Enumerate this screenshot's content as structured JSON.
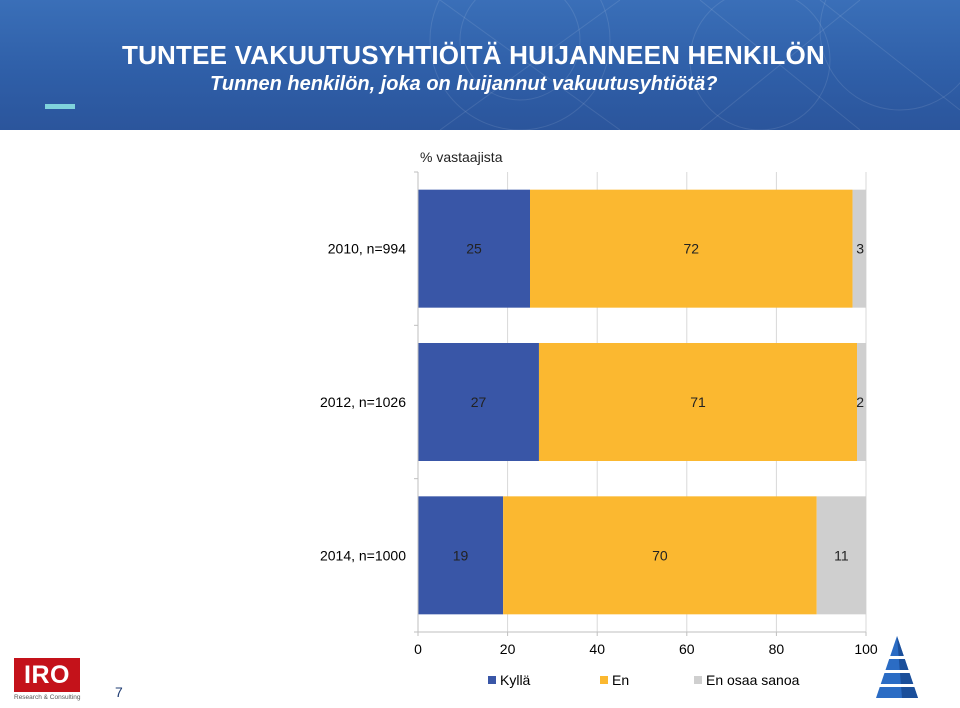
{
  "header": {
    "title": "TUNTEE VAKUUTUSYHTIÖITÄ HUIJANNEEN HENKILÖN",
    "subtitle": "Tunnen henkilön, joka on huijannut vakuutusyhtiötä?"
  },
  "chart_unit_label": "% vastaajista",
  "chart_data": {
    "type": "bar",
    "orientation": "horizontal",
    "stacked": true,
    "categories": [
      "2010, n=994",
      "2012, n=1026",
      "2014, n=1000"
    ],
    "series": [
      {
        "name": "Kyllä",
        "color": "#3956a7",
        "values": [
          25,
          27,
          19
        ]
      },
      {
        "name": "En",
        "color": "#fbb830",
        "values": [
          72,
          71,
          70
        ]
      },
      {
        "name": "En osaa sanoa",
        "color": "#cfcfcf",
        "values": [
          3,
          2,
          11
        ]
      }
    ],
    "xlim": [
      0,
      100
    ],
    "xticks": [
      "0",
      "20",
      "40",
      "60",
      "80",
      "100"
    ],
    "grid": true,
    "legend": "bottom"
  },
  "footer": {
    "page_number": "7",
    "logo_text": "IRO",
    "logo_tagline": "Research & Consulting"
  },
  "colors": {
    "header_blue": "#2f5fa8",
    "accent": "#7fd3dc",
    "logo_red": "#c4121a"
  }
}
